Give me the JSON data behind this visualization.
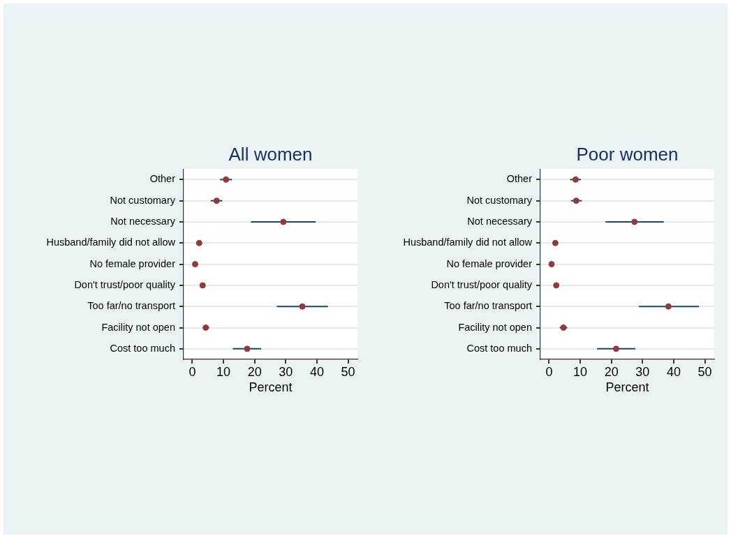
{
  "chart_data": [
    {
      "type": "scatter",
      "orientation": "horizontal",
      "title": "All women",
      "xlabel": "Percent",
      "categories": [
        "Other",
        "Not customary",
        "Not necessary",
        "Husband/family did not allow",
        "No female provider",
        "Don't trust/poor quality",
        "Too far/no transport",
        "Facility not open",
        "Cost too much"
      ],
      "values": [
        10.8,
        7.8,
        29.2,
        2.2,
        0.9,
        3.3,
        35.3,
        4.3,
        17.6
      ],
      "errors": [
        [
          8.9,
          12.7
        ],
        [
          5.9,
          9.6
        ],
        [
          18.8,
          39.6
        ],
        null,
        null,
        null,
        [
          27.1,
          43.5
        ],
        [
          3.4,
          5.4
        ],
        [
          13.0,
          22.1
        ]
      ],
      "color": "#8e3a3f",
      "marker": "circle",
      "xlim": [
        -2.8,
        53
      ],
      "xticks": [
        0,
        10,
        20,
        30,
        40,
        50
      ],
      "grid": "y"
    },
    {
      "type": "scatter",
      "orientation": "horizontal",
      "title": "Poor women",
      "xlabel": "Percent",
      "categories": [
        "Other",
        "Not customary",
        "Not necessary",
        "Husband/family did not allow",
        "No female provider",
        "Don't trust/poor quality",
        "Too far/no transport",
        "Facility not open",
        "Cost too much"
      ],
      "values": [
        8.5,
        8.7,
        27.4,
        2.0,
        0.8,
        2.3,
        38.3,
        4.6,
        21.5
      ],
      "errors": [
        [
          6.7,
          10.2
        ],
        [
          7.0,
          10.5
        ],
        [
          18.1,
          36.8
        ],
        null,
        null,
        null,
        [
          28.8,
          48.1
        ],
        [
          3.4,
          5.8
        ],
        [
          15.4,
          27.7
        ]
      ],
      "color": "#8e3a3f",
      "marker": "circle",
      "xlim": [
        -2.8,
        53
      ],
      "xticks": [
        0,
        10,
        20,
        30,
        40,
        50
      ],
      "grid": "y"
    }
  ]
}
